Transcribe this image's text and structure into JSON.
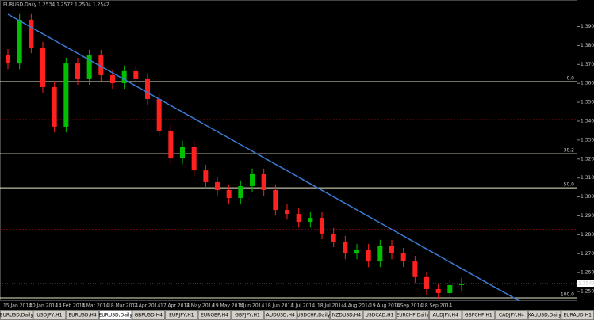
{
  "chart_data": {
    "type": "candlestick",
    "title": "EURUSD,Daily  1.2534 1.2572 1.2504 1.2542",
    "ylim": [
      1.245,
      1.399
    ],
    "yticks": [
      {
        "value": 1.25,
        "label": "1.2500"
      },
      {
        "value": 1.26,
        "label": "1.2600"
      },
      {
        "value": 1.27,
        "label": "1.2700"
      },
      {
        "value": 1.28,
        "label": "1.2800"
      },
      {
        "value": 1.29,
        "label": "1.2900"
      },
      {
        "value": 1.3,
        "label": "1.3000"
      },
      {
        "value": 1.31,
        "label": "1.3100"
      },
      {
        "value": 1.32,
        "label": "1.3200"
      },
      {
        "value": 1.33,
        "label": "1.3300"
      },
      {
        "value": 1.34,
        "label": "1.3400"
      },
      {
        "value": 1.35,
        "label": "1.3500"
      },
      {
        "value": 1.36,
        "label": "1.3600"
      },
      {
        "value": 1.37,
        "label": "1.3700"
      },
      {
        "value": 1.38,
        "label": "1.3800"
      },
      {
        "value": 1.39,
        "label": "1.3900"
      }
    ],
    "up_color": "#00c000",
    "down_color": "#ff2020",
    "open": [
      1.375,
      1.3705,
      1.3936,
      1.3789,
      1.358,
      1.3371,
      1.3705,
      1.3622,
      1.3747,
      1.3643,
      1.3601,
      1.3664,
      1.3622,
      1.3517,
      1.335,
      1.3203,
      1.3266,
      1.314,
      1.3078,
      1.3036,
      1.2994,
      1.3057,
      1.312,
      1.3036,
      1.2931,
      1.291,
      1.2868,
      1.2889,
      1.2806,
      1.2764,
      1.2701,
      1.2722,
      1.2659,
      1.2743,
      1.2701,
      1.2659,
      1.2576,
      1.2513,
      1.2492,
      1.2534
    ],
    "high": [
      1.378,
      1.3966,
      1.3966,
      1.3819,
      1.361,
      1.3735,
      1.3735,
      1.3777,
      1.3777,
      1.3673,
      1.3694,
      1.3694,
      1.3652,
      1.3547,
      1.338,
      1.3296,
      1.3296,
      1.317,
      1.3108,
      1.3066,
      1.3087,
      1.315,
      1.315,
      1.3066,
      1.2961,
      1.294,
      1.2919,
      1.2919,
      1.2836,
      1.2794,
      1.2752,
      1.2752,
      1.2773,
      1.2773,
      1.2731,
      1.2689,
      1.2606,
      1.2543,
      1.2564,
      1.2572
    ],
    "low": [
      1.3675,
      1.3675,
      1.3759,
      1.355,
      1.3341,
      1.3341,
      1.3592,
      1.3592,
      1.3613,
      1.3571,
      1.3571,
      1.3592,
      1.3487,
      1.332,
      1.3173,
      1.3173,
      1.311,
      1.3048,
      1.3006,
      1.2964,
      1.2964,
      1.3027,
      1.3006,
      1.2901,
      1.288,
      1.2838,
      1.2838,
      1.2776,
      1.2734,
      1.2671,
      1.2671,
      1.2629,
      1.2629,
      1.2671,
      1.2629,
      1.2546,
      1.2483,
      1.2462,
      1.2462,
      1.2504
    ],
    "close": [
      1.3705,
      1.3936,
      1.3789,
      1.358,
      1.3371,
      1.3705,
      1.3622,
      1.3747,
      1.3643,
      1.3601,
      1.3664,
      1.3622,
      1.3517,
      1.335,
      1.3203,
      1.3266,
      1.314,
      1.3078,
      1.3036,
      1.2994,
      1.3057,
      1.312,
      1.3036,
      1.2931,
      1.291,
      1.2868,
      1.2889,
      1.2806,
      1.2764,
      1.2701,
      1.2722,
      1.2659,
      1.2743,
      1.2701,
      1.2659,
      1.2576,
      1.2513,
      1.2492,
      1.2534,
      1.2542
    ],
    "fib_levels": [
      {
        "value": 1.3609,
        "label": "0.0"
      },
      {
        "value": 1.3228,
        "label": "38.2"
      },
      {
        "value": 1.3048,
        "label": "50.0"
      },
      {
        "value": 1.2467,
        "label": "100.0"
      }
    ],
    "fib_color": "#e8e8c8",
    "dotted_levels": [
      1.3408,
      1.2827
    ],
    "dotted_color": "#a01010",
    "trendline": {
      "start": 1.3965,
      "end": 1.245,
      "color": "#3a7bd5"
    },
    "current_price": {
      "value": 1.2542,
      "label": "1.2542"
    },
    "time_labels": [
      "15 Jan 2014",
      "30 Jan 2014",
      "14 Feb 2014",
      "3 Mar 2014",
      "18 Mar 2014",
      "2 Apr 2014",
      "17 Apr 2014",
      "2 May 2014",
      "19 May 2014",
      "3 Jun 2014",
      "18 Jun 2014",
      "3 Jul 2014",
      "18 Jul 2014",
      "4 Aug 2014",
      "19 Aug 2014",
      "3 Sep 2014",
      "18 Sep 2014"
    ]
  },
  "tabs": [
    "EURUSD,Daily",
    "USDJPY,H1",
    "EURUSD,H4",
    "EURUSD,Daily",
    "GBPUSD,H4",
    "EURJPY,H1",
    "EURGBP,H4",
    "GBPJPY,H1",
    "AUDUSD,H4",
    "USDCHF,Daily",
    "NZDUSD,H4",
    "USDCAD,H1",
    "EURCHF,Daily",
    "AUDJPY,H4",
    "GBPCHF,H1",
    "CADJPY,H4",
    "XAUUSD,Daily",
    "EURAUD,H1"
  ],
  "active_tab": 3
}
